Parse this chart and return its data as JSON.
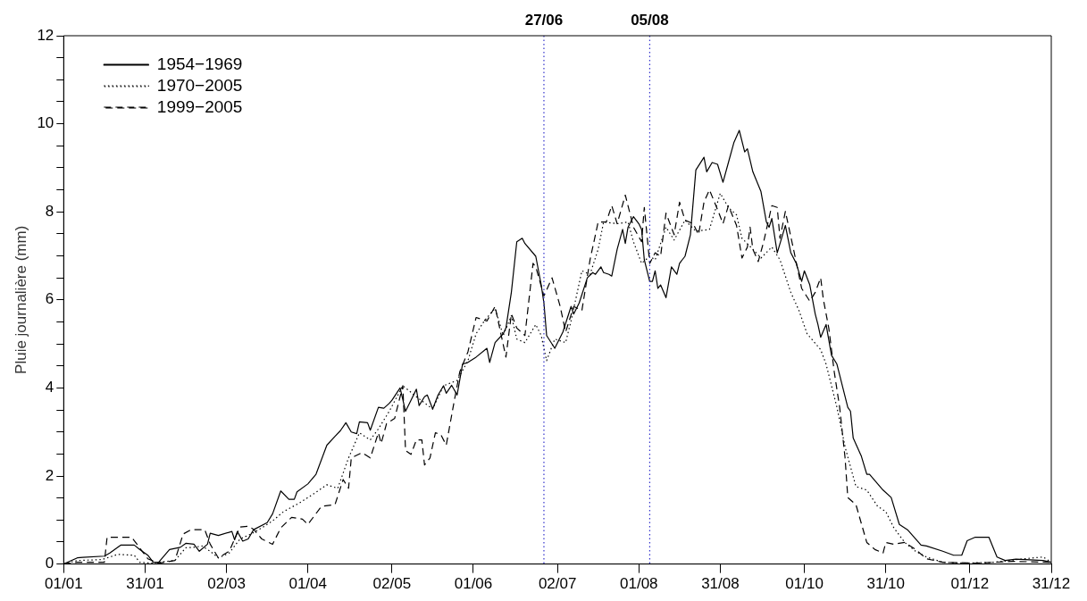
{
  "chart_data": {
    "type": "line",
    "ylabel": "Pluie journalière (mm)",
    "xlim": [
      "--01-01",
      "--12-31"
    ],
    "ylim": [
      0,
      12
    ],
    "xticks": [
      {
        "value": "--01-01",
        "label": "01/01"
      },
      {
        "value": "--01-31",
        "label": "31/01"
      },
      {
        "value": "--03-02",
        "label": "02/03"
      },
      {
        "value": "--04-01",
        "label": "01/04"
      },
      {
        "value": "--05-02",
        "label": "02/05"
      },
      {
        "value": "--06-01",
        "label": "01/06"
      },
      {
        "value": "--07-02",
        "label": "02/07"
      },
      {
        "value": "--08-01",
        "label": "01/08"
      },
      {
        "value": "--08-31",
        "label": "31/08"
      },
      {
        "value": "--10-01",
        "label": "01/10"
      },
      {
        "value": "--10-31",
        "label": "31/10"
      },
      {
        "value": "--12-01",
        "label": "01/12"
      },
      {
        "value": "--12-31",
        "label": "31/12"
      }
    ],
    "yticks": [
      0,
      {
        "value": 0.5,
        "label": null
      },
      {
        "value": 1,
        "label": null
      },
      {
        "value": 1.5,
        "label": null
      },
      2,
      {
        "value": 2.5,
        "label": null
      },
      {
        "value": 3,
        "label": null
      },
      {
        "value": 3.5,
        "label": null
      },
      4,
      {
        "value": 4.5,
        "label": null
      },
      {
        "value": 5,
        "label": null
      },
      {
        "value": 5.5,
        "label": null
      },
      6,
      {
        "value": 6.5,
        "label": null
      },
      {
        "value": 7,
        "label": null
      },
      {
        "value": 7.5,
        "label": null
      },
      8,
      {
        "value": 8.5,
        "label": null
      },
      {
        "value": 9,
        "label": null
      },
      {
        "value": 9.5,
        "label": null
      },
      10,
      {
        "value": 10.5,
        "label": null
      },
      {
        "value": 11,
        "label": null
      },
      {
        "value": 11.5,
        "label": null
      },
      12
    ],
    "grid": false,
    "legend": "top left",
    "marker": "none",
    "ref_lines": [
      {
        "axis": "x",
        "value": "--06-27",
        "label": "27/06",
        "color": "#3333cc",
        "line_style": "dotted"
      },
      {
        "axis": "x",
        "value": "--08-05",
        "label": "05/08",
        "color": "#3333cc",
        "line_style": "dotted"
      }
    ],
    "series": [
      {
        "name": "1954−1969",
        "color": "#000000",
        "line_style": "solid",
        "x": [
          "--01-01",
          "--01-06",
          "--01-08",
          "--01-16",
          "--01-18",
          "--01-22",
          "--01-27",
          "--01-29",
          "--02-01",
          "--02-03",
          "--02-05",
          "--02-09",
          "--02-13",
          "--02-15",
          "--02-18",
          "--02-20",
          "--02-23",
          "--02-24",
          "--02-27",
          "--03-04",
          "--03-05",
          "--03-06",
          "--03-08",
          "--03-10",
          "--03-12",
          "--03-17",
          "--03-19",
          "--03-22",
          "--03-25",
          "--03-27",
          "--03-28",
          "--04-01",
          "--04-04",
          "--04-08",
          "--04-11",
          "--04-13",
          "--04-15",
          "--04-17",
          "--04-19",
          "--04-20",
          "--04-23",
          "--04-24",
          "--04-27",
          "--04-29",
          "--05-01",
          "--05-02",
          "--05-05",
          "--05-07",
          "--05-09",
          "--05-11",
          "--05-12",
          "--05-14",
          "--05-15",
          "--05-17",
          "--05-19",
          "--05-21",
          "--05-22",
          "--05-24",
          "--05-26",
          "--05-28",
          "--05-30",
          "--06-02",
          "--06-06",
          "--06-07",
          "--06-09",
          "--06-12",
          "--06-13",
          "--06-15",
          "--06-17",
          "--06-19",
          "--06-20",
          "--06-24",
          "--06-26",
          "--06-27",
          "--06-28",
          "--07-01",
          "--07-04",
          "--07-07",
          "--07-08",
          "--07-10",
          "--07-13",
          "--07-15",
          "--07-16",
          "--07-18",
          "--07-19",
          "--07-21",
          "--07-22",
          "--07-24",
          "--07-26",
          "--07-27",
          "--07-28",
          "--07-29",
          "--07-30",
          "--08-01",
          "--08-02",
          "--08-03",
          "--08-05",
          "--08-06",
          "--08-07",
          "--08-08",
          "--08-09",
          "--08-11",
          "--08-13",
          "--08-15",
          "--08-16",
          "--08-18",
          "--08-20",
          "--08-22",
          "--08-25",
          "--08-26",
          "--08-28",
          "--08-30",
          "--09-01",
          "--09-03",
          "--09-05",
          "--09-07",
          "--09-09",
          "--09-10",
          "--09-12",
          "--09-15",
          "--09-17",
          "--09-18",
          "--09-19",
          "--09-21",
          "--09-24",
          "--09-26",
          "--09-28",
          "--09-30",
          "--10-01",
          "--10-03",
          "--10-05",
          "--10-06",
          "--10-07",
          "--10-09",
          "--10-11",
          "--10-13",
          "--10-17",
          "--10-18",
          "--10-19",
          "--10-22",
          "--10-24",
          "--10-25",
          "--10-30",
          "--11-02",
          "--11-05",
          "--11-08",
          "--11-13",
          "--11-15",
          "--11-21",
          "--11-25",
          "--11-28",
          "--11-30",
          "--12-03",
          "--12-08",
          "--12-11",
          "--12-14",
          "--12-18",
          "--12-28",
          "--12-31"
        ],
        "values": [
          0,
          0.14,
          0.15,
          0.18,
          0.25,
          0.43,
          0.43,
          0.33,
          0.2,
          0.04,
          0.04,
          0.33,
          0.38,
          0.47,
          0.45,
          0.29,
          0.45,
          0.7,
          0.65,
          0.74,
          0.55,
          0.74,
          0.52,
          0.57,
          0.78,
          0.94,
          1.14,
          1.66,
          1.47,
          1.47,
          1.64,
          1.82,
          2.04,
          2.7,
          2.9,
          3.03,
          3.21,
          3.0,
          2.96,
          3.23,
          3.21,
          3.04,
          3.56,
          3.54,
          3.65,
          3.72,
          4.0,
          3.47,
          3.72,
          3.97,
          3.6,
          3.8,
          3.84,
          3.52,
          3.84,
          4.05,
          3.88,
          4.06,
          3.84,
          4.54,
          4.58,
          4.7,
          4.9,
          4.58,
          5.03,
          5.23,
          5.36,
          6.17,
          7.32,
          7.4,
          7.28,
          6.99,
          6.34,
          5.93,
          5.19,
          4.9,
          5.27,
          5.85,
          5.68,
          5.93,
          6.5,
          6.62,
          6.58,
          6.75,
          6.62,
          6.58,
          6.54,
          7.15,
          7.6,
          7.28,
          7.65,
          7.77,
          7.89,
          7.73,
          7.6,
          6.91,
          6.42,
          6.42,
          6.66,
          6.26,
          6.34,
          6.05,
          6.75,
          6.58,
          6.83,
          6.99,
          7.48,
          8.95,
          9.24,
          8.91,
          9.12,
          9.08,
          8.67,
          9.12,
          9.57,
          9.85,
          9.36,
          9.43,
          8.91,
          8.46,
          7.77,
          7.65,
          7.85,
          7.07,
          7.69,
          7.07,
          6.83,
          6.42,
          6.66,
          6.34,
          5.68,
          5.44,
          5.15,
          5.44,
          4.74,
          4.54,
          3.56,
          3.47,
          2.86,
          2.45,
          2.04,
          2.04,
          1.68,
          1.51,
          0.9,
          0.78,
          0.43,
          0.41,
          0.29,
          0.2,
          0.2,
          0.53,
          0.61,
          0.61,
          0.16,
          0.08,
          0.11,
          0.08,
          0.04
        ]
      },
      {
        "name": "1970−2005",
        "color": "#000000",
        "line_style": "dotted",
        "x": [
          "--01-01",
          "--01-06",
          "--01-15",
          "--01-21",
          "--01-27",
          "--01-29",
          "--02-02",
          "--02-11",
          "--02-15",
          "--02-18",
          "--02-21",
          "--02-24",
          "--02-27",
          "--03-03",
          "--03-07",
          "--03-11",
          "--03-15",
          "--03-19",
          "--03-23",
          "--03-29",
          "--04-03",
          "--04-08",
          "--04-12",
          "--04-16",
          "--04-20",
          "--04-24",
          "--04-27",
          "--05-01",
          "--05-06",
          "--05-11",
          "--05-17",
          "--05-21",
          "--05-26",
          "--05-30",
          "--06-02",
          "--06-05",
          "--06-09",
          "--06-12",
          "--06-15",
          "--06-17",
          "--06-20",
          "--06-24",
          "--06-26",
          "--06-28",
          "--07-01",
          "--07-05",
          "--07-07",
          "--07-11",
          "--07-14",
          "--07-17",
          "--07-19",
          "--07-24",
          "--07-28",
          "--07-30",
          "--08-02",
          "--08-05",
          "--08-07",
          "--08-11",
          "--08-14",
          "--08-18",
          "--08-22",
          "--08-27",
          "--08-31",
          "--09-03",
          "--09-06",
          "--09-08",
          "--09-12",
          "--09-15",
          "--09-19",
          "--09-22",
          "--09-26",
          "--09-29",
          "--10-02",
          "--10-07",
          "--10-09",
          "--10-13",
          "--10-16",
          "--10-20",
          "--10-24",
          "--10-28",
          "--10-31",
          "--11-03",
          "--11-07",
          "--11-11",
          "--11-15",
          "--11-21",
          "--11-29",
          "--12-10",
          "--12-21",
          "--12-28",
          "--12-31"
        ],
        "values": [
          0,
          0.08,
          0.1,
          0.22,
          0.2,
          0.04,
          0.02,
          0.08,
          0.37,
          0.38,
          0.41,
          0.29,
          0.14,
          0.25,
          0.57,
          0.68,
          0.82,
          0.98,
          1.19,
          1.39,
          1.59,
          1.8,
          1.72,
          2.41,
          2.98,
          2.82,
          3.07,
          3.47,
          4.05,
          3.8,
          3.52,
          4.05,
          4.17,
          4.62,
          5.23,
          5.52,
          5.81,
          5.19,
          5.64,
          5.11,
          5.03,
          5.44,
          5.19,
          4.62,
          5.11,
          5.03,
          5.52,
          6.66,
          6.58,
          7.15,
          7.77,
          7.73,
          7.77,
          7.32,
          6.83,
          6.99,
          6.91,
          7.65,
          7.36,
          7.81,
          7.56,
          7.6,
          8.42,
          8.1,
          7.93,
          7.4,
          7.15,
          6.95,
          7.2,
          6.91,
          6.17,
          5.76,
          5.23,
          4.87,
          4.54,
          3.56,
          2.66,
          1.76,
          1.68,
          1.31,
          1.19,
          0.82,
          0.49,
          0.29,
          0.16,
          0.04,
          0.02,
          0.04,
          0.12,
          0.16,
          0.04
        ]
      },
      {
        "name": "1999−2005",
        "color": "#000000",
        "line_style": "dashed",
        "x": [
          "--01-01",
          "--01-06",
          "--01-16",
          "--01-17",
          "--01-26",
          "--01-28",
          "--02-01",
          "--02-05",
          "--02-11",
          "--02-14",
          "--02-17",
          "--02-22",
          "--02-24",
          "--02-27",
          "--03-03",
          "--03-07",
          "--03-10",
          "--03-12",
          "--03-15",
          "--03-19",
          "--03-22",
          "--03-26",
          "--03-30",
          "--04-01",
          "--04-06",
          "--04-11",
          "--04-14",
          "--04-16",
          "--04-17",
          "--04-21",
          "--04-24",
          "--04-27",
          "--04-28",
          "--04-30",
          "--05-03",
          "--05-06",
          "--05-07",
          "--05-09",
          "--05-11",
          "--05-13",
          "--05-14",
          "--05-16",
          "--05-18",
          "--05-20",
          "--05-22",
          "--05-25",
          "--05-27",
          "--05-30",
          "--06-02",
          "--06-06",
          "--06-09",
          "--06-11",
          "--06-13",
          "--06-15",
          "--06-17",
          "--06-20",
          "--06-23",
          "--06-24",
          "--06-27",
          "--06-30",
          "--07-03",
          "--07-05",
          "--07-08",
          "--07-11",
          "--07-14",
          "--07-17",
          "--07-20",
          "--07-22",
          "--07-24",
          "--07-27",
          "--07-30",
          "--08-02",
          "--08-03",
          "--08-05",
          "--08-07",
          "--08-09",
          "--08-11",
          "--08-14",
          "--08-16",
          "--08-18",
          "--08-21",
          "--08-23",
          "--08-25",
          "--08-27",
          "--08-30",
          "--09-01",
          "--09-03",
          "--09-06",
          "--09-08",
          "--09-10",
          "--09-11",
          "--09-12",
          "--09-14",
          "--09-16",
          "--09-19",
          "--09-21",
          "--09-22",
          "--09-24",
          "--09-27",
          "--09-30",
          "--10-03",
          "--10-05",
          "--10-07",
          "--10-08",
          "--10-10",
          "--10-12",
          "--10-14",
          "--10-16",
          "--10-17",
          "--10-20",
          "--10-24",
          "--10-27",
          "--10-30",
          "--10-31",
          "--11-03",
          "--11-07",
          "--11-11",
          "--11-15",
          "--11-21",
          "--12-03",
          "--12-17",
          "--12-31"
        ],
        "values": [
          0,
          0.04,
          0.04,
          0.61,
          0.61,
          0.45,
          0.12,
          0.02,
          0.08,
          0.68,
          0.78,
          0.78,
          0.45,
          0.14,
          0.29,
          0.84,
          0.86,
          0.79,
          0.57,
          0.45,
          0.82,
          1.06,
          1.02,
          0.9,
          1.31,
          1.35,
          1.92,
          1.72,
          2.41,
          2.53,
          2.41,
          2.98,
          2.74,
          3.19,
          3.31,
          4.05,
          2.58,
          2.49,
          2.82,
          2.82,
          2.25,
          2.41,
          2.98,
          2.94,
          2.7,
          3.72,
          4.37,
          4.82,
          5.6,
          5.52,
          5.85,
          5.27,
          4.7,
          5.68,
          5.36,
          5.19,
          6.83,
          6.75,
          6.09,
          6.5,
          5.85,
          5.27,
          5.85,
          5.76,
          6.91,
          7.77,
          7.77,
          8.14,
          7.73,
          8.38,
          7.65,
          7.32,
          8.1,
          6.83,
          7.07,
          6.99,
          7.97,
          7.48,
          8.22,
          7.81,
          7.73,
          7.48,
          8.22,
          8.5,
          8.05,
          7.73,
          8.14,
          7.69,
          6.95,
          7.2,
          7.65,
          7.15,
          6.87,
          7.32,
          8.14,
          8.1,
          7.4,
          8.01,
          7.15,
          6.26,
          5.97,
          6.17,
          6.5,
          6.01,
          5.36,
          4.37,
          3.56,
          2.41,
          1.51,
          1.35,
          0.49,
          0.33,
          0.25,
          0.49,
          0.45,
          0.49,
          0.33,
          0.12,
          0.04,
          0.02,
          0.06,
          0.04
        ]
      }
    ]
  }
}
